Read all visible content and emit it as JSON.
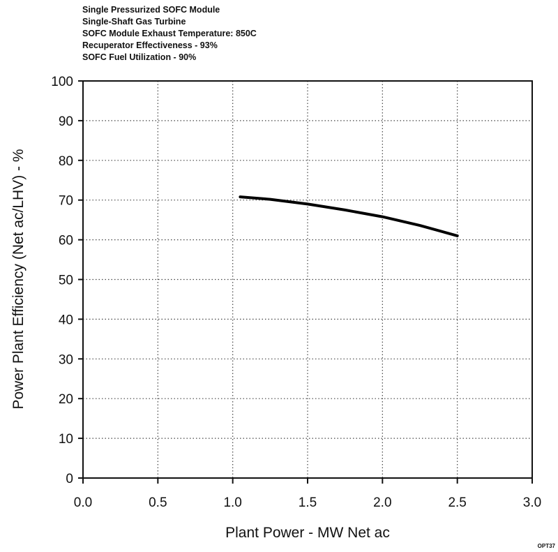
{
  "annotations": [
    "Single Pressurized SOFC Module",
    "Single-Shaft Gas Turbine",
    "SOFC Module Exhaust Temperature:  850C",
    "Recuperator Effectiveness - 93%",
    "SOFC Fuel Utilization  - 90%"
  ],
  "code": "OPT37",
  "chart_data": {
    "type": "line",
    "title": "",
    "xlabel": "Plant Power  -  MW Net ac",
    "ylabel": "Power Plant Efficiency (Net ac/LHV)  -  %",
    "xlim": [
      0.0,
      3.0
    ],
    "ylim": [
      0,
      100
    ],
    "x_ticks": [
      "0.0",
      "0.5",
      "1.0",
      "1.5",
      "2.0",
      "2.5",
      "3.0"
    ],
    "y_ticks": [
      "0",
      "10",
      "20",
      "30",
      "40",
      "50",
      "60",
      "70",
      "80",
      "90",
      "100"
    ],
    "grid": true,
    "series": [
      {
        "x": [
          1.05,
          1.25,
          1.5,
          1.75,
          2.0,
          2.25,
          2.5
        ],
        "values": [
          70.8,
          70.2,
          69.0,
          67.5,
          65.8,
          63.6,
          61.0
        ]
      }
    ],
    "line_color": "#000000"
  }
}
